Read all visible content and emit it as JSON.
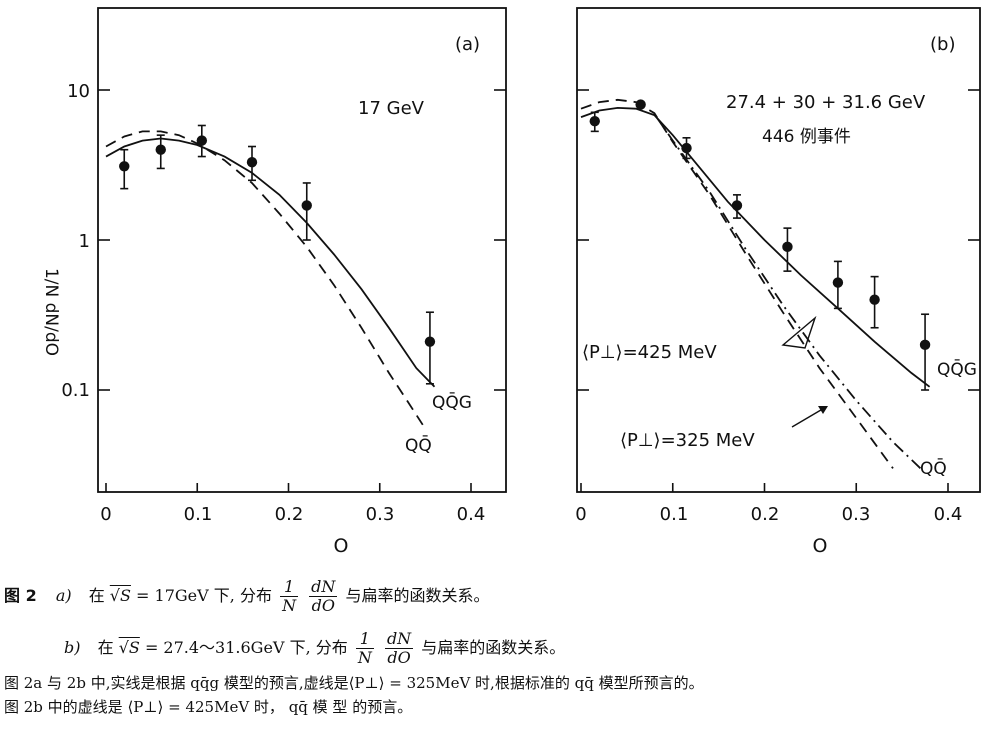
{
  "chart_data": [
    {
      "type": "scatter",
      "panel_label": "(a)",
      "annotation": "17 GeV",
      "xlabel": "O",
      "ylabel": "1/N dN/dO",
      "xlim": [
        0,
        0.45
      ],
      "ylim": [
        0.03,
        30
      ],
      "y_scale": "log",
      "xticks": [
        "0",
        "0.1",
        "0.2",
        "0.3",
        "0.4"
      ],
      "yticks": [
        "10",
        "1",
        "0.1"
      ],
      "series": [
        {
          "name": "QQ̄G",
          "style": "solid",
          "x": [
            0.0,
            0.02,
            0.04,
            0.06,
            0.08,
            0.1,
            0.13,
            0.16,
            0.19,
            0.22,
            0.25,
            0.28,
            0.31,
            0.34,
            0.36
          ],
          "y": [
            3.6,
            4.2,
            4.6,
            4.75,
            4.6,
            4.3,
            3.6,
            2.8,
            2.0,
            1.3,
            0.8,
            0.47,
            0.26,
            0.14,
            0.105
          ]
        },
        {
          "name": "QQ̄",
          "style": "dashed",
          "x": [
            0.0,
            0.02,
            0.04,
            0.06,
            0.08,
            0.1,
            0.13,
            0.16,
            0.19,
            0.22,
            0.25,
            0.28,
            0.31,
            0.33,
            0.35
          ],
          "y": [
            4.2,
            4.9,
            5.3,
            5.3,
            5.0,
            4.4,
            3.4,
            2.4,
            1.5,
            0.9,
            0.5,
            0.26,
            0.13,
            0.085,
            0.055
          ]
        },
        {
          "name": "data",
          "x": [
            0.02,
            0.06,
            0.105,
            0.16,
            0.22,
            0.355
          ],
          "y": [
            3.1,
            4.0,
            4.6,
            3.3,
            1.7,
            0.21
          ],
          "err_low": [
            2.2,
            3.0,
            3.6,
            2.5,
            1.0,
            0.11
          ],
          "err_high": [
            4.0,
            5.0,
            5.8,
            4.2,
            2.4,
            0.33
          ]
        }
      ]
    },
    {
      "type": "scatter",
      "panel_label": "(b)",
      "annotation": "27.4 + 30 + 31.6 GeV",
      "annotation2": "446 例事件",
      "xlabel": "O",
      "xlim": [
        0,
        0.45
      ],
      "ylim": [
        0.03,
        30
      ],
      "y_scale": "log",
      "xticks": [
        "0",
        "0.1",
        "0.2",
        "0.3",
        "0.4"
      ],
      "series": [
        {
          "name": "QQ̄G",
          "style": "solid",
          "x": [
            0.0,
            0.02,
            0.04,
            0.06,
            0.08,
            0.1,
            0.13,
            0.16,
            0.2,
            0.24,
            0.28,
            0.32,
            0.36,
            0.38
          ],
          "y": [
            6.6,
            7.3,
            7.6,
            7.5,
            6.8,
            5.0,
            3.0,
            1.8,
            1.0,
            0.58,
            0.35,
            0.21,
            0.13,
            0.105
          ]
        },
        {
          "name": "QQ̄",
          "style": "dashed",
          "x": [
            0.0,
            0.02,
            0.04,
            0.06,
            0.08,
            0.1,
            0.14,
            0.18,
            0.22,
            0.26,
            0.3,
            0.34
          ],
          "y": [
            7.5,
            8.3,
            8.6,
            8.3,
            7.0,
            4.5,
            2.0,
            0.8,
            0.33,
            0.14,
            0.065,
            0.03
          ]
        },
        {
          "name": "dashdot",
          "style": "dashdot",
          "x": [
            0.08,
            0.1,
            0.14,
            0.18,
            0.22,
            0.26,
            0.3,
            0.34,
            0.37
          ],
          "y": [
            6.9,
            4.6,
            2.1,
            0.86,
            0.37,
            0.17,
            0.085,
            0.045,
            0.03
          ]
        },
        {
          "name": "data",
          "x": [
            0.015,
            0.065,
            0.115,
            0.17,
            0.225,
            0.28,
            0.32,
            0.375
          ],
          "y": [
            6.2,
            8.0,
            4.1,
            1.7,
            0.9,
            0.52,
            0.4,
            0.2
          ],
          "err_low": [
            5.3,
            8.0,
            3.5,
            1.4,
            0.62,
            0.35,
            0.26,
            0.1
          ],
          "err_high": [
            7.1,
            8.0,
            4.8,
            2.0,
            1.2,
            0.72,
            0.57,
            0.32
          ]
        }
      ],
      "labels": {
        "qqg": "QQ̄G",
        "qq": "QQ̄",
        "p425": "⟨P⊥⟩=425 MeV",
        "p325": "⟨P⊥⟩=325 MeV"
      }
    }
  ],
  "ylabel_text": "1/N dN/dO",
  "caption": {
    "fig_label": "图 2",
    "a_label": "a)",
    "a_pre": "在",
    "a_sqrt": "√S",
    "a_energy": "= 17GeV 下, 分布",
    "frac_num1": "1",
    "frac_den1": "N",
    "frac_num2": "dN",
    "frac_den2": "dO",
    "a_post": "与扁率的函数关系。",
    "b_label": "b)",
    "b_pre": "在",
    "b_sqrt": "√S",
    "b_energy": "= 27.4～31.6GeV 下, 分布",
    "b_post": "与扁率的函数关系。",
    "note1": "图 2a 与 2b 中,实线是根据 qq̄g 模型的预言,虚线是⟨P⊥⟩ = 325MeV 时,根据标准的 qq̄ 模型所预言的。",
    "note2": "图 2b 中的虚线是 ⟨P⊥⟩ = 425MeV 时， qq̄ 模 型 的预言。"
  }
}
